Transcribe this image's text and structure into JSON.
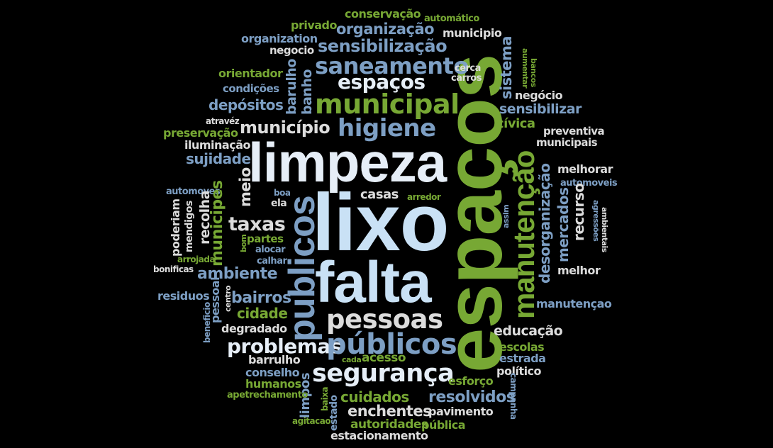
{
  "colors": {
    "background": "#000000",
    "white": "#e6eef7",
    "light_blue": "#c9e1f5",
    "steel_blue": "#7d9fc4",
    "green": "#77a834",
    "light_gray": "#dcdcdc"
  },
  "words": {
    "espacos_big": "espaços",
    "lixo": "lixo",
    "limpeza": "limpeza",
    "falta": "falta",
    "publicos_vertical": "publicos",
    "manutencao_vertical": "manutenção",
    "municipal": "municipal",
    "higiene": "higiene",
    "saneamento": "saneamento",
    "espacos_small": "espaços",
    "sensibilizacao": "sensibilização",
    "organizacao": "organização",
    "organization": "organization",
    "conservacao": "conservação",
    "privado": "privado",
    "automatico": "automático",
    "municipio_top": "municipio",
    "negocio_top": "negocio",
    "orientador": "orientador",
    "condicoes": "condições",
    "depositos": "depósitos",
    "atravez": "atravéz",
    "preservacao": "preservação",
    "iluminacao": "iluminação",
    "sujidade": "sujidade",
    "municipio_accent": "município",
    "barulho": "barulho",
    "banho": "banho",
    "sistema": "sistema",
    "cerca": "cerca",
    "carros": "carros",
    "aumentar": "aumentar",
    "bancos": "bancos",
    "negocio_accent": "negócio",
    "sensibilizar": "sensibilizar",
    "civica": "cívica",
    "preventiva": "preventiva",
    "municipais": "municipais",
    "melhorar": "melhorar",
    "desorganizacao": "desorganização",
    "automoveis": "automoveis",
    "mercados": "mercados",
    "recurso": "recurso",
    "agressoes": "agressões",
    "ambientais": "ambientais",
    "assim": "assim",
    "melhor": "melhor",
    "manutencao_small": "manutençao",
    "automoves": "automoves",
    "municipes": "municipes",
    "meio": "meio",
    "recolha": "recolha",
    "mendigos": "mendigos",
    "poderiam": "poderiam",
    "arrojada": "arrojada",
    "bonificas": "bonificas",
    "boa": "boa",
    "ela": "ela",
    "bom": "bom",
    "casas": "casas",
    "arredor": "arredor",
    "taxas": "taxas",
    "partes": "partes",
    "alocar": "alocar",
    "calhar": "calhar",
    "ambiente": "ambiente",
    "residuos": "residuos",
    "pessoal": "pessoal",
    "beneficio": "beneficio",
    "centro": "centro",
    "bairros": "bairros",
    "cidade": "cidade",
    "degradado": "degradado",
    "pessoas": "pessoas",
    "problemas": "problemas",
    "publicos_accent": "públicos",
    "educacao": "educação",
    "escolas": "escolas",
    "estrada": "estrada",
    "barrulho": "barrulho",
    "cada": "cada",
    "acesso": "acesso",
    "seguranca": "segurança",
    "politico": "político",
    "conselho": "conselho",
    "humanos": "humanos",
    "limpos": "limpos",
    "esforco": "esforço",
    "campanha": "campanha",
    "apetrechamento": "apetrechamento",
    "cuidados": "cuidados",
    "resolvidos": "resolvidos",
    "baixa": "baixa",
    "estado": "estado",
    "enchentes": "enchentes",
    "pavimento": "pavimento",
    "agitacao": "agitacao",
    "autoridades": "autoridades",
    "publica": "pública",
    "estacionamento": "estacionamento"
  }
}
